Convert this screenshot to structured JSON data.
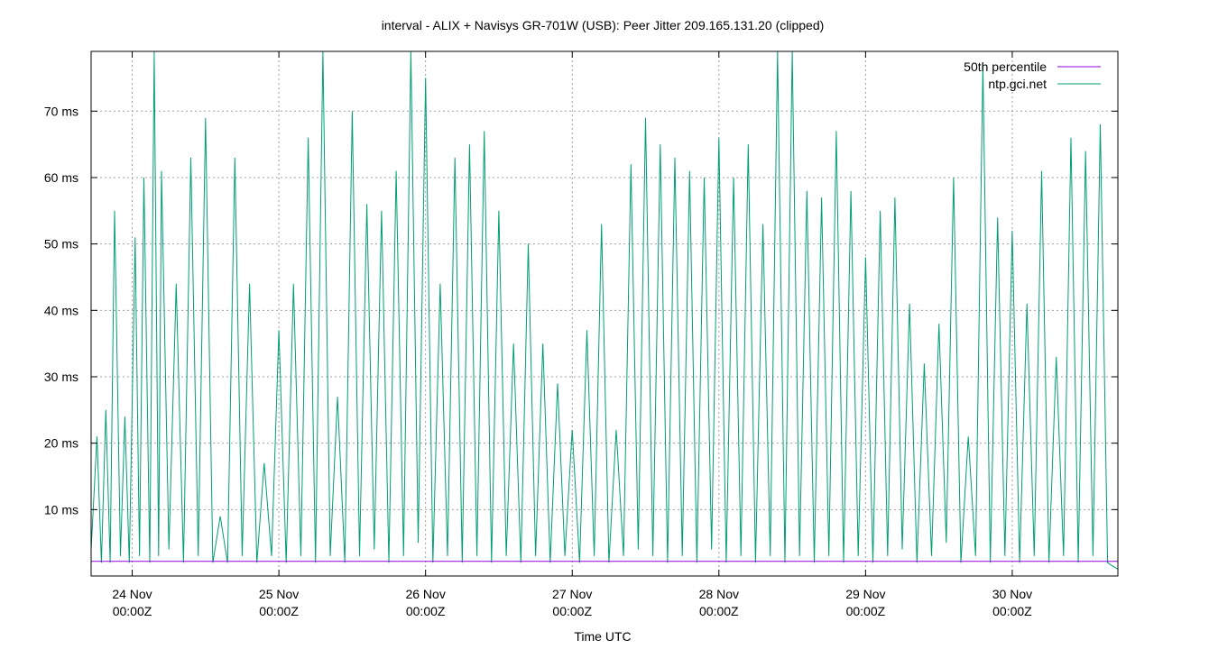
{
  "chart_data": {
    "type": "line",
    "title": "interval - ALIX + Navisys GR-701W (USB): Peer Jitter 209.165.131.20 (clipped)",
    "xlabel": "Time UTC",
    "ylabel": "",
    "ylim": [
      0,
      79
    ],
    "xlim": [
      -0.28,
      6.72
    ],
    "grid": true,
    "legend_position": "top-right",
    "y_ticks": [
      {
        "value": 10,
        "label": "10 ms"
      },
      {
        "value": 20,
        "label": "20 ms"
      },
      {
        "value": 30,
        "label": "30 ms"
      },
      {
        "value": 40,
        "label": "40 ms"
      },
      {
        "value": 50,
        "label": "50 ms"
      },
      {
        "value": 60,
        "label": "60 ms"
      },
      {
        "value": 70,
        "label": "70 ms"
      }
    ],
    "x_ticks": [
      {
        "value": 0,
        "line1": "24 Nov",
        "line2": "00:00Z"
      },
      {
        "value": 1,
        "line1": "25 Nov",
        "line2": "00:00Z"
      },
      {
        "value": 2,
        "line1": "26 Nov",
        "line2": "00:00Z"
      },
      {
        "value": 3,
        "line1": "27 Nov",
        "line2": "00:00Z"
      },
      {
        "value": 4,
        "line1": "28 Nov",
        "line2": "00:00Z"
      },
      {
        "value": 5,
        "line1": "29 Nov",
        "line2": "00:00Z"
      },
      {
        "value": 6,
        "line1": "30 Nov",
        "line2": "00:00Z"
      }
    ],
    "series": [
      {
        "name": "50th percentile",
        "color": "#9400d3",
        "x": [
          -0.28,
          6.72
        ],
        "y": [
          2.2,
          2.2
        ]
      },
      {
        "name": "ntp.gci.net",
        "color": "#009e73",
        "x": [
          -0.28,
          -0.24,
          -0.21,
          -0.18,
          -0.15,
          -0.12,
          -0.08,
          -0.05,
          -0.02,
          0.02,
          0.05,
          0.08,
          0.12,
          0.15,
          0.18,
          0.2,
          0.25,
          0.3,
          0.35,
          0.4,
          0.45,
          0.5,
          0.55,
          0.6,
          0.65,
          0.7,
          0.75,
          0.8,
          0.85,
          0.9,
          0.95,
          1.0,
          1.05,
          1.1,
          1.15,
          1.2,
          1.25,
          1.3,
          1.35,
          1.4,
          1.45,
          1.5,
          1.55,
          1.6,
          1.65,
          1.7,
          1.75,
          1.8,
          1.85,
          1.9,
          1.95,
          2.0,
          2.05,
          2.1,
          2.15,
          2.2,
          2.25,
          2.3,
          2.35,
          2.4,
          2.45,
          2.5,
          2.55,
          2.6,
          2.65,
          2.7,
          2.75,
          2.8,
          2.85,
          2.9,
          2.95,
          3.0,
          3.05,
          3.1,
          3.15,
          3.2,
          3.25,
          3.3,
          3.35,
          3.4,
          3.45,
          3.5,
          3.55,
          3.6,
          3.65,
          3.7,
          3.75,
          3.8,
          3.85,
          3.9,
          3.95,
          4.0,
          4.05,
          4.1,
          4.15,
          4.2,
          4.25,
          4.3,
          4.35,
          4.4,
          4.45,
          4.5,
          4.55,
          4.6,
          4.65,
          4.7,
          4.75,
          4.8,
          4.85,
          4.9,
          4.95,
          5.0,
          5.05,
          5.1,
          5.15,
          5.2,
          5.25,
          5.3,
          5.35,
          5.4,
          5.45,
          5.5,
          5.55,
          5.6,
          5.65,
          5.7,
          5.75,
          5.8,
          5.85,
          5.9,
          5.95,
          6.0,
          6.05,
          6.1,
          6.15,
          6.2,
          6.25,
          6.3,
          6.35,
          6.4,
          6.45,
          6.5,
          6.55,
          6.6,
          6.65,
          6.72
        ],
        "y": [
          4,
          21,
          2,
          25,
          2,
          55,
          3,
          24,
          2,
          51,
          3,
          60,
          2,
          79,
          3,
          61,
          4,
          44,
          2,
          63,
          3,
          69,
          2,
          9,
          2,
          63,
          3,
          44,
          2,
          17,
          3,
          37,
          2,
          44,
          3,
          66,
          2,
          79,
          3,
          27,
          2,
          70,
          3,
          56,
          4,
          55,
          2,
          61,
          3,
          79,
          5,
          75,
          2,
          44,
          3,
          63,
          2,
          65,
          3,
          67,
          2,
          55,
          3,
          35,
          2,
          50,
          3,
          35,
          2,
          29,
          3,
          22,
          2,
          37,
          3,
          53,
          2,
          22,
          3,
          62,
          4,
          69,
          3,
          65,
          2,
          63,
          3,
          61,
          2,
          60,
          4,
          66,
          2,
          60,
          3,
          65,
          2,
          53,
          3,
          79,
          2,
          79,
          3,
          58,
          2,
          57,
          3,
          67,
          2,
          58,
          3,
          48,
          2,
          55,
          3,
          57,
          4,
          41,
          2,
          32,
          3,
          38,
          5,
          60,
          2,
          21,
          3,
          77,
          2,
          54,
          3,
          52,
          2,
          41,
          3,
          61,
          2,
          33,
          3,
          66,
          2,
          64,
          3,
          68,
          2,
          1
        ]
      }
    ]
  }
}
